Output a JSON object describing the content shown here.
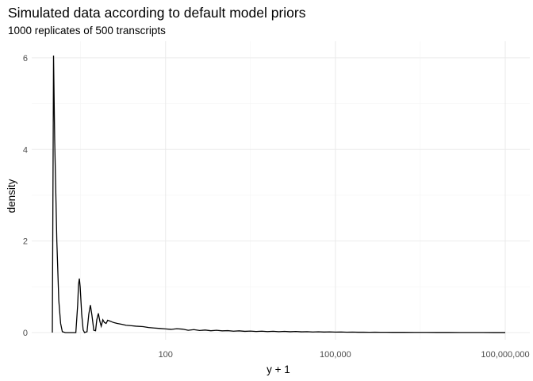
{
  "chart_data": {
    "type": "line",
    "title": "Simulated data according to default model priors",
    "subtitle": "1000 replicates of 500 transcripts",
    "xlabel": "y + 1",
    "ylabel": "density",
    "x_scale": "log10",
    "x_ticks": [
      {
        "value": 100,
        "label": "100"
      },
      {
        "value": 100000,
        "label": "100,000"
      },
      {
        "value": 100000000,
        "label": "100,000,000"
      }
    ],
    "y_ticks": [
      {
        "value": 0,
        "label": "0"
      },
      {
        "value": 2,
        "label": "2"
      },
      {
        "value": 4,
        "label": "4"
      },
      {
        "value": 6,
        "label": "6"
      }
    ],
    "xlim": [
      1,
      100000000
    ],
    "ylim": [
      0,
      6.05
    ],
    "grid": true,
    "series": [
      {
        "points": [
          [
            1,
            0
          ],
          [
            1.05,
            6.05
          ],
          [
            1.1,
            4.2
          ],
          [
            1.2,
            2.0
          ],
          [
            1.3,
            0.7
          ],
          [
            1.4,
            0.2
          ],
          [
            1.5,
            0.02
          ],
          [
            1.7,
            0
          ],
          [
            2.6,
            0
          ],
          [
            2.8,
            0.6
          ],
          [
            2.9,
            1.05
          ],
          [
            3.0,
            1.18
          ],
          [
            3.1,
            1.0
          ],
          [
            3.3,
            0.4
          ],
          [
            3.5,
            0.06
          ],
          [
            3.7,
            0
          ],
          [
            4.1,
            0.02
          ],
          [
            4.4,
            0.4
          ],
          [
            4.7,
            0.6
          ],
          [
            5.0,
            0.38
          ],
          [
            5.4,
            0.05
          ],
          [
            5.8,
            0.04
          ],
          [
            6.1,
            0.28
          ],
          [
            6.5,
            0.42
          ],
          [
            6.9,
            0.25
          ],
          [
            7.3,
            0.14
          ],
          [
            7.8,
            0.28
          ],
          [
            8.3,
            0.22
          ],
          [
            8.9,
            0.2
          ],
          [
            9.5,
            0.27
          ],
          [
            10.5,
            0.25
          ],
          [
            12,
            0.22
          ],
          [
            14,
            0.2
          ],
          [
            17,
            0.18
          ],
          [
            20,
            0.16
          ],
          [
            25,
            0.15
          ],
          [
            30,
            0.14
          ],
          [
            40,
            0.13
          ],
          [
            50,
            0.11
          ],
          [
            63,
            0.1
          ],
          [
            80,
            0.09
          ],
          [
            100,
            0.08
          ],
          [
            125,
            0.07
          ],
          [
            158,
            0.085
          ],
          [
            200,
            0.075
          ],
          [
            251,
            0.05
          ],
          [
            316,
            0.065
          ],
          [
            398,
            0.045
          ],
          [
            501,
            0.055
          ],
          [
            631,
            0.04
          ],
          [
            794,
            0.05
          ],
          [
            1000,
            0.038
          ],
          [
            1259,
            0.042
          ],
          [
            1585,
            0.03
          ],
          [
            1995,
            0.038
          ],
          [
            2512,
            0.027
          ],
          [
            3162,
            0.033
          ],
          [
            3981,
            0.024
          ],
          [
            5012,
            0.03
          ],
          [
            6310,
            0.022
          ],
          [
            7943,
            0.028
          ],
          [
            10000,
            0.02
          ],
          [
            12589,
            0.026
          ],
          [
            15849,
            0.018
          ],
          [
            19953,
            0.024
          ],
          [
            25119,
            0.016
          ],
          [
            31623,
            0.02
          ],
          [
            39811,
            0.013
          ],
          [
            50119,
            0.017
          ],
          [
            63096,
            0.012
          ],
          [
            79433,
            0.015
          ],
          [
            100000,
            0.011
          ],
          [
            125893,
            0.013
          ],
          [
            158489,
            0.009
          ],
          [
            199526,
            0.011
          ],
          [
            251189,
            0.008
          ],
          [
            316228,
            0.009
          ],
          [
            398107,
            0.006
          ],
          [
            501187,
            0.008
          ],
          [
            630957,
            0.006
          ],
          [
            794328,
            0.007
          ],
          [
            1000000,
            0.005
          ],
          [
            1584893,
            0.005
          ],
          [
            2511886,
            0.004
          ],
          [
            3981072,
            0.004
          ],
          [
            6309573,
            0.003
          ],
          [
            10000000,
            0.003
          ],
          [
            15848932,
            0.002
          ],
          [
            25118864,
            0.002
          ],
          [
            39810717,
            0.0015
          ],
          [
            63095734,
            0.001
          ],
          [
            100000000,
            0.0008
          ]
        ]
      }
    ]
  }
}
